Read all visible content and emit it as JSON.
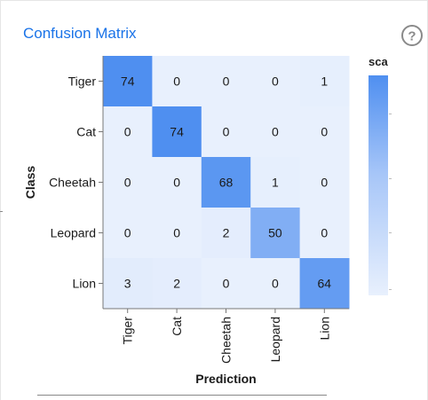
{
  "panel": {
    "title": "Confusion Matrix",
    "legend_title": "sca",
    "help_icon": "help-circle-icon"
  },
  "colors": {
    "title": "#1a73e8",
    "max_cell": "#4f8ff0",
    "min_cell": "#e8f0fd"
  },
  "chart_data": {
    "type": "heatmap",
    "title": "Confusion Matrix",
    "xlabel": "Prediction",
    "ylabel": "Class",
    "x_categories": [
      "Tiger",
      "Cat",
      "Cheetah",
      "Leopard",
      "Lion"
    ],
    "y_categories": [
      "Tiger",
      "Cat",
      "Cheetah",
      "Leopard",
      "Lion"
    ],
    "values": [
      [
        74,
        0,
        0,
        0,
        1
      ],
      [
        0,
        74,
        0,
        0,
        0
      ],
      [
        0,
        0,
        68,
        1,
        0
      ],
      [
        0,
        0,
        2,
        50,
        0
      ],
      [
        3,
        2,
        0,
        0,
        64
      ]
    ],
    "color_range": [
      0,
      74
    ],
    "legend": "right"
  }
}
